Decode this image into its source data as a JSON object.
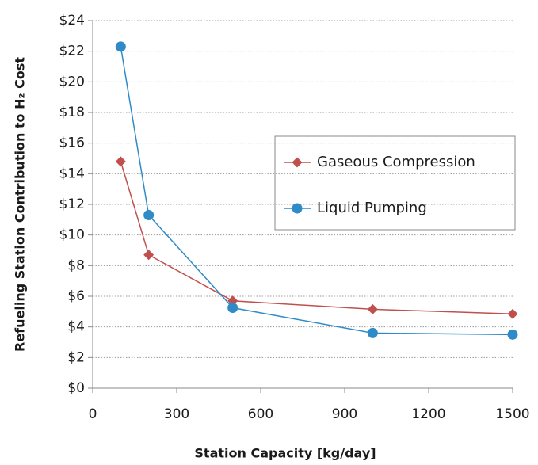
{
  "chart_data": {
    "type": "line",
    "x_label": "Station Capacity [kg/day]",
    "y_label": "Refueling Station Contribution to H₂ Cost",
    "x": [
      100,
      200,
      500,
      1000,
      1500
    ],
    "series": [
      {
        "name": "Gaseous Compression",
        "color": "#c0504d",
        "marker": "diamond",
        "values": [
          14.8,
          8.7,
          5.7,
          5.15,
          4.85
        ]
      },
      {
        "name": "Liquid Pumping",
        "color": "#2e8bc8",
        "marker": "circle",
        "values": [
          22.3,
          11.3,
          5.25,
          3.6,
          3.5
        ]
      }
    ],
    "xlim": [
      0,
      1500
    ],
    "xticks": [
      0,
      300,
      600,
      900,
      1200,
      1500
    ],
    "ylim": [
      0,
      24
    ],
    "yticks": [
      {
        "value": 0,
        "label": "$0"
      },
      {
        "value": 2,
        "label": "$2"
      },
      {
        "value": 4,
        "label": "$4"
      },
      {
        "value": 6,
        "label": "$6"
      },
      {
        "value": 8,
        "label": "$8"
      },
      {
        "value": 10,
        "label": "$10"
      },
      {
        "value": 12,
        "label": "$12"
      },
      {
        "value": 14,
        "label": "$14"
      },
      {
        "value": 16,
        "label": "$16"
      },
      {
        "value": 18,
        "label": "$18"
      },
      {
        "value": 20,
        "label": "$20"
      },
      {
        "value": 22,
        "label": "$22"
      },
      {
        "value": 24,
        "label": "$24"
      }
    ],
    "grid": true
  }
}
